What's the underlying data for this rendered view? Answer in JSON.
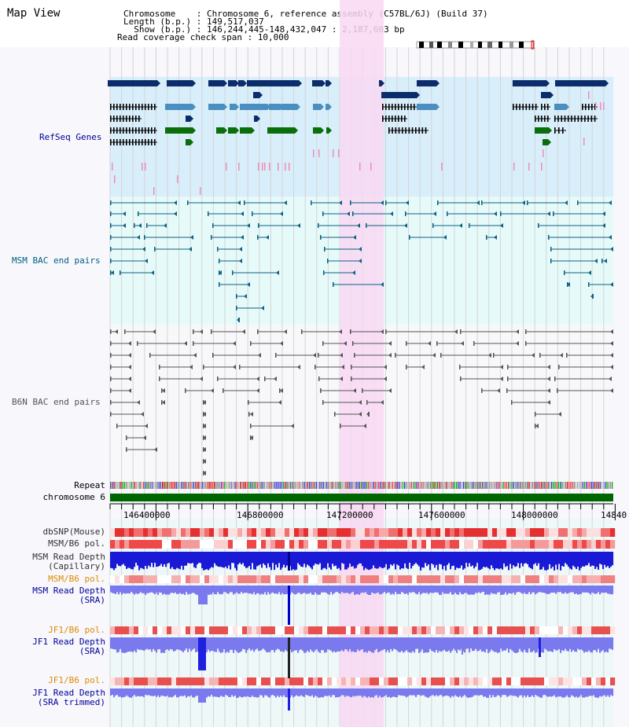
{
  "title": "Map View",
  "info": {
    "chromosome": "Chromosome    : Chromosome 6, reference assembly (C57BL/6J) (Build 37)",
    "length": "Length (b.p.) : 149,517,037",
    "show": "  Show (b.p.) : 146,244,445-148,432,047 : 2,187,603 bp",
    "span": "Read coverage check span : 10,000"
  },
  "tracks": {
    "refseq": "RefSeq Genes",
    "msm_bac": "MSM BAC end pairs",
    "b6n_bac": "B6N BAC end pairs",
    "repeat": "Repeat",
    "chromosome": "chromosome 6",
    "dbsnp": "dbSNP(Mouse)",
    "msm_b6_pol": "MSM/B6 pol.",
    "msm_depth_cap_1": "MSM Read Depth",
    "msm_depth_cap_2": "(Capillary)",
    "msm_b6_pol_2": "MSM/B6 pol.",
    "msm_depth_sra_1": "MSM Read Depth",
    "msm_depth_sra_2": "(SRA)",
    "jf1_b6_pol": "JF1/B6 pol.",
    "jf1_depth_sra_1": "JF1 Read Depth",
    "jf1_depth_sra_2": "(SRA)",
    "jf1_b6_pol_2": "JF1/B6 pol.",
    "jf1_depth_trim_1": "JF1 Read Depth",
    "jf1_depth_trim_2": "(SRA trimmed)"
  },
  "axis": {
    "ticks": [
      "146400000",
      "146800000",
      "147200000",
      "147600000",
      "148000000",
      "14840"
    ]
  },
  "colors": {
    "highlight": "#f8d8f2",
    "refseq_bg": "#d8eefa",
    "bac_bg": "#e6fafa",
    "gene_navy": "#0c2d6b",
    "gene_steel": "#4a8fbf",
    "gene_green": "#0a6e0a",
    "msm_line": "#0c6080",
    "b6n_line": "#555555",
    "chrom": "#006600",
    "depth_blue": "#1a1ad6",
    "depth_light": "#7a7aee",
    "label_blue": "#000099",
    "label_teal": "#005e80",
    "label_orange": "#e08a00"
  }
}
